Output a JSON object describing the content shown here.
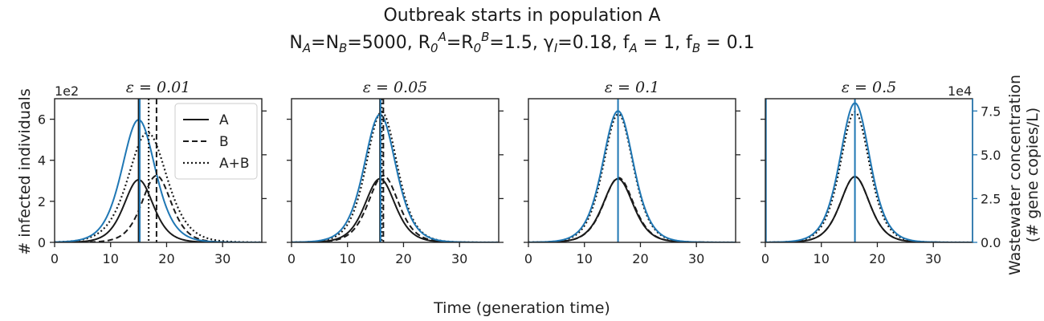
{
  "figure": {
    "title_line1": "Outbreak starts in population A",
    "title_line2": "N_A=N_B=5000, R_0^A=R_0^B=1.5, γ_I=0.18, f_A = 1, f_B = 0.1",
    "xlabel": "Time (generation time)",
    "ylabel_left": "# infected individuals",
    "ylabel_right_line1": "Wastewater concentration",
    "ylabel_right_line2": "(# gene copies/L)",
    "left_scale_label": "1e2",
    "right_scale_label": "1e4"
  },
  "colors": {
    "infected": "#1a1a1a",
    "wastewater": "#1f77b4"
  },
  "chart_data": [
    {
      "type": "line",
      "panel_title": "ε = 0.01",
      "xlim": [
        0,
        37
      ],
      "ylim_left": [
        0,
        7
      ],
      "ylim_right": [
        0,
        8.2
      ],
      "xticks": [
        0,
        10,
        20,
        30
      ],
      "yticks_left": [
        0,
        2,
        4,
        6
      ],
      "yticks_right": [
        0,
        2.5,
        5.0,
        7.5
      ],
      "series": [
        {
          "name": "A",
          "style": "solid",
          "axis": "left",
          "peak_x": 15.0,
          "peak_y": 3.05,
          "width": 3.5
        },
        {
          "name": "B",
          "style": "dashed",
          "axis": "left",
          "peak_x": 18.2,
          "peak_y": 3.25,
          "width": 3.5
        },
        {
          "name": "A+B",
          "style": "dotted",
          "axis": "left",
          "peak_x": 16.6,
          "peak_y": 5.35,
          "width": 4.6
        },
        {
          "style": "blue",
          "axis": "right",
          "peak_x": 15.0,
          "peak_y": 7.0,
          "width": 4.0
        }
      ],
      "vlines": [
        {
          "x": 15.0,
          "style": "solid"
        },
        {
          "x": 18.2,
          "style": "dashed"
        },
        {
          "x": 16.8,
          "style": "dotted"
        },
        {
          "x": 15.2,
          "style": "blue"
        }
      ],
      "legend": [
        {
          "label": "A",
          "style": "solid"
        },
        {
          "label": "B",
          "style": "dashed"
        },
        {
          "label": "A+B",
          "style": "dotted"
        }
      ],
      "legend_position": "top-right"
    },
    {
      "type": "line",
      "panel_title": "ε = 0.05",
      "xlim": [
        0,
        37
      ],
      "ylim_left": [
        0,
        7
      ],
      "ylim_right": [
        0,
        8.2
      ],
      "xticks": [
        0,
        10,
        20,
        30
      ],
      "yticks_left": [
        0,
        2,
        4,
        6
      ],
      "yticks_right": [
        0,
        2.5,
        5.0,
        7.5
      ],
      "series": [
        {
          "name": "A",
          "style": "solid",
          "axis": "left",
          "peak_x": 15.8,
          "peak_y": 3.1,
          "width": 3.6
        },
        {
          "name": "B",
          "style": "dashed",
          "axis": "left",
          "peak_x": 16.4,
          "peak_y": 3.25,
          "width": 3.6
        },
        {
          "name": "A+B",
          "style": "dotted",
          "axis": "left",
          "peak_x": 16.1,
          "peak_y": 6.35,
          "width": 3.7
        },
        {
          "style": "blue",
          "axis": "right",
          "peak_x": 15.8,
          "peak_y": 7.3,
          "width": 3.8
        }
      ],
      "vlines": [
        {
          "x": 15.8,
          "style": "solid"
        },
        {
          "x": 16.4,
          "style": "dashed"
        },
        {
          "x": 16.1,
          "style": "dotted"
        },
        {
          "x": 15.9,
          "style": "blue"
        }
      ]
    },
    {
      "type": "line",
      "panel_title": "ε = 0.1",
      "xlim": [
        0,
        37
      ],
      "ylim_left": [
        0,
        7
      ],
      "ylim_right": [
        0,
        8.2
      ],
      "xticks": [
        0,
        10,
        20,
        30
      ],
      "yticks_left": [
        0,
        2,
        4,
        6
      ],
      "yticks_right": [
        0,
        2.5,
        5.0,
        7.5
      ],
      "series": [
        {
          "name": "A",
          "style": "solid",
          "axis": "left",
          "peak_x": 16.0,
          "peak_y": 3.1,
          "width": 3.6
        },
        {
          "name": "B",
          "style": "dashed",
          "axis": "left",
          "peak_x": 16.1,
          "peak_y": 3.15,
          "width": 3.6
        },
        {
          "name": "A+B",
          "style": "dotted",
          "axis": "left",
          "peak_x": 16.05,
          "peak_y": 6.25,
          "width": 3.6
        },
        {
          "style": "blue",
          "axis": "right",
          "peak_x": 16.0,
          "peak_y": 7.5,
          "width": 3.7
        }
      ],
      "vlines": [
        {
          "x": 16.0,
          "style": "blue"
        }
      ]
    },
    {
      "type": "line",
      "panel_title": "ε = 0.5",
      "xlim": [
        0,
        37
      ],
      "ylim_left": [
        0,
        7
      ],
      "ylim_right": [
        0,
        8.2
      ],
      "xticks": [
        0,
        10,
        20,
        30
      ],
      "yticks_left": [
        0,
        2,
        4,
        6
      ],
      "yticks_right": [
        0,
        2.5,
        5.0,
        7.5
      ],
      "series": [
        {
          "name": "A",
          "style": "solid",
          "axis": "left",
          "peak_x": 16.0,
          "peak_y": 3.2,
          "width": 3.5
        },
        {
          "name": "B",
          "style": "dashed",
          "axis": "left",
          "peak_x": 16.0,
          "peak_y": 3.2,
          "width": 3.5
        },
        {
          "name": "A+B",
          "style": "dotted",
          "axis": "left",
          "peak_x": 16.0,
          "peak_y": 6.35,
          "width": 3.5
        },
        {
          "style": "blue",
          "axis": "right",
          "peak_x": 16.0,
          "peak_y": 7.95,
          "width": 3.6
        }
      ],
      "vlines": [
        {
          "x": 16.0,
          "style": "blue"
        },
        {
          "x": 0.1,
          "style": "blue"
        }
      ]
    }
  ]
}
